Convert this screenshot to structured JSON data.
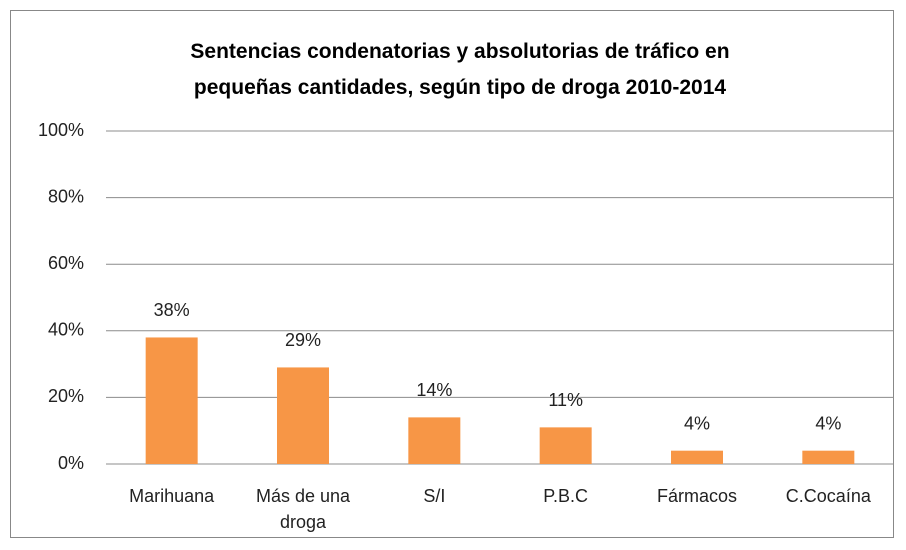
{
  "chart_data": {
    "type": "bar",
    "title": "Sentencias condenatorias y absolutorias de tráfico en pequeñas cantidades, según tipo de droga 2010-2014",
    "categories": [
      "Marihuana",
      "Más de una droga",
      "S/I",
      "P.B.C",
      "Fármacos",
      "C.Cocaína"
    ],
    "values": [
      38,
      29,
      14,
      11,
      4,
      4
    ],
    "value_labels": [
      "38%",
      "29%",
      "14%",
      "11%",
      "4%",
      "4%"
    ],
    "color": "#f79646",
    "ylim": [
      0,
      100
    ],
    "yticks": [
      {
        "value": 0,
        "label": "0%"
      },
      {
        "value": 20,
        "label": "20%"
      },
      {
        "value": 40,
        "label": "40%"
      },
      {
        "value": 60,
        "label": "60%"
      },
      {
        "value": 80,
        "label": "80%"
      },
      {
        "value": 100,
        "label": "100%"
      }
    ],
    "grid": true
  }
}
